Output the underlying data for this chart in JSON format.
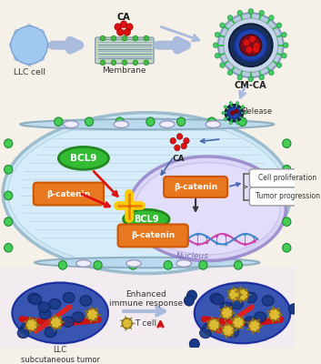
{
  "background_color": "#f5f0e8",
  "cell_body_color": "#c5e5f5",
  "cell_border_color": "#88aabb",
  "nucleus_color": "#ddd5f8",
  "nucleus_border_color": "#9988cc",
  "label_LLC_cell": "LLC cell",
  "label_Membrane": "Membrane",
  "label_CM_CA": "CM-CA",
  "label_CA": "CA",
  "label_Release": "Release",
  "label_BCL9": "BCL9",
  "label_beta_catenin": "β-catenin",
  "label_Nucleus": "Nucleus",
  "label_Cell_prolif": "Cell proliferation",
  "label_Tumor_prog": "Tumor progression",
  "label_LLC_tumor": "LLC\nsubcutaneous tumor",
  "label_Enhanced": "Enhanced\nimmune response",
  "label_T_cell": "T cell",
  "arrow_color_light": "#aabbdd",
  "red_dot_color": "#dd1111",
  "green_oval_color": "#33bb33",
  "orange_box_color": "#e87820",
  "blue_arrow_color": "#6688bb",
  "dark_blue_cell": "#1a3a7a",
  "yellow_tcell": "#ddbb33"
}
